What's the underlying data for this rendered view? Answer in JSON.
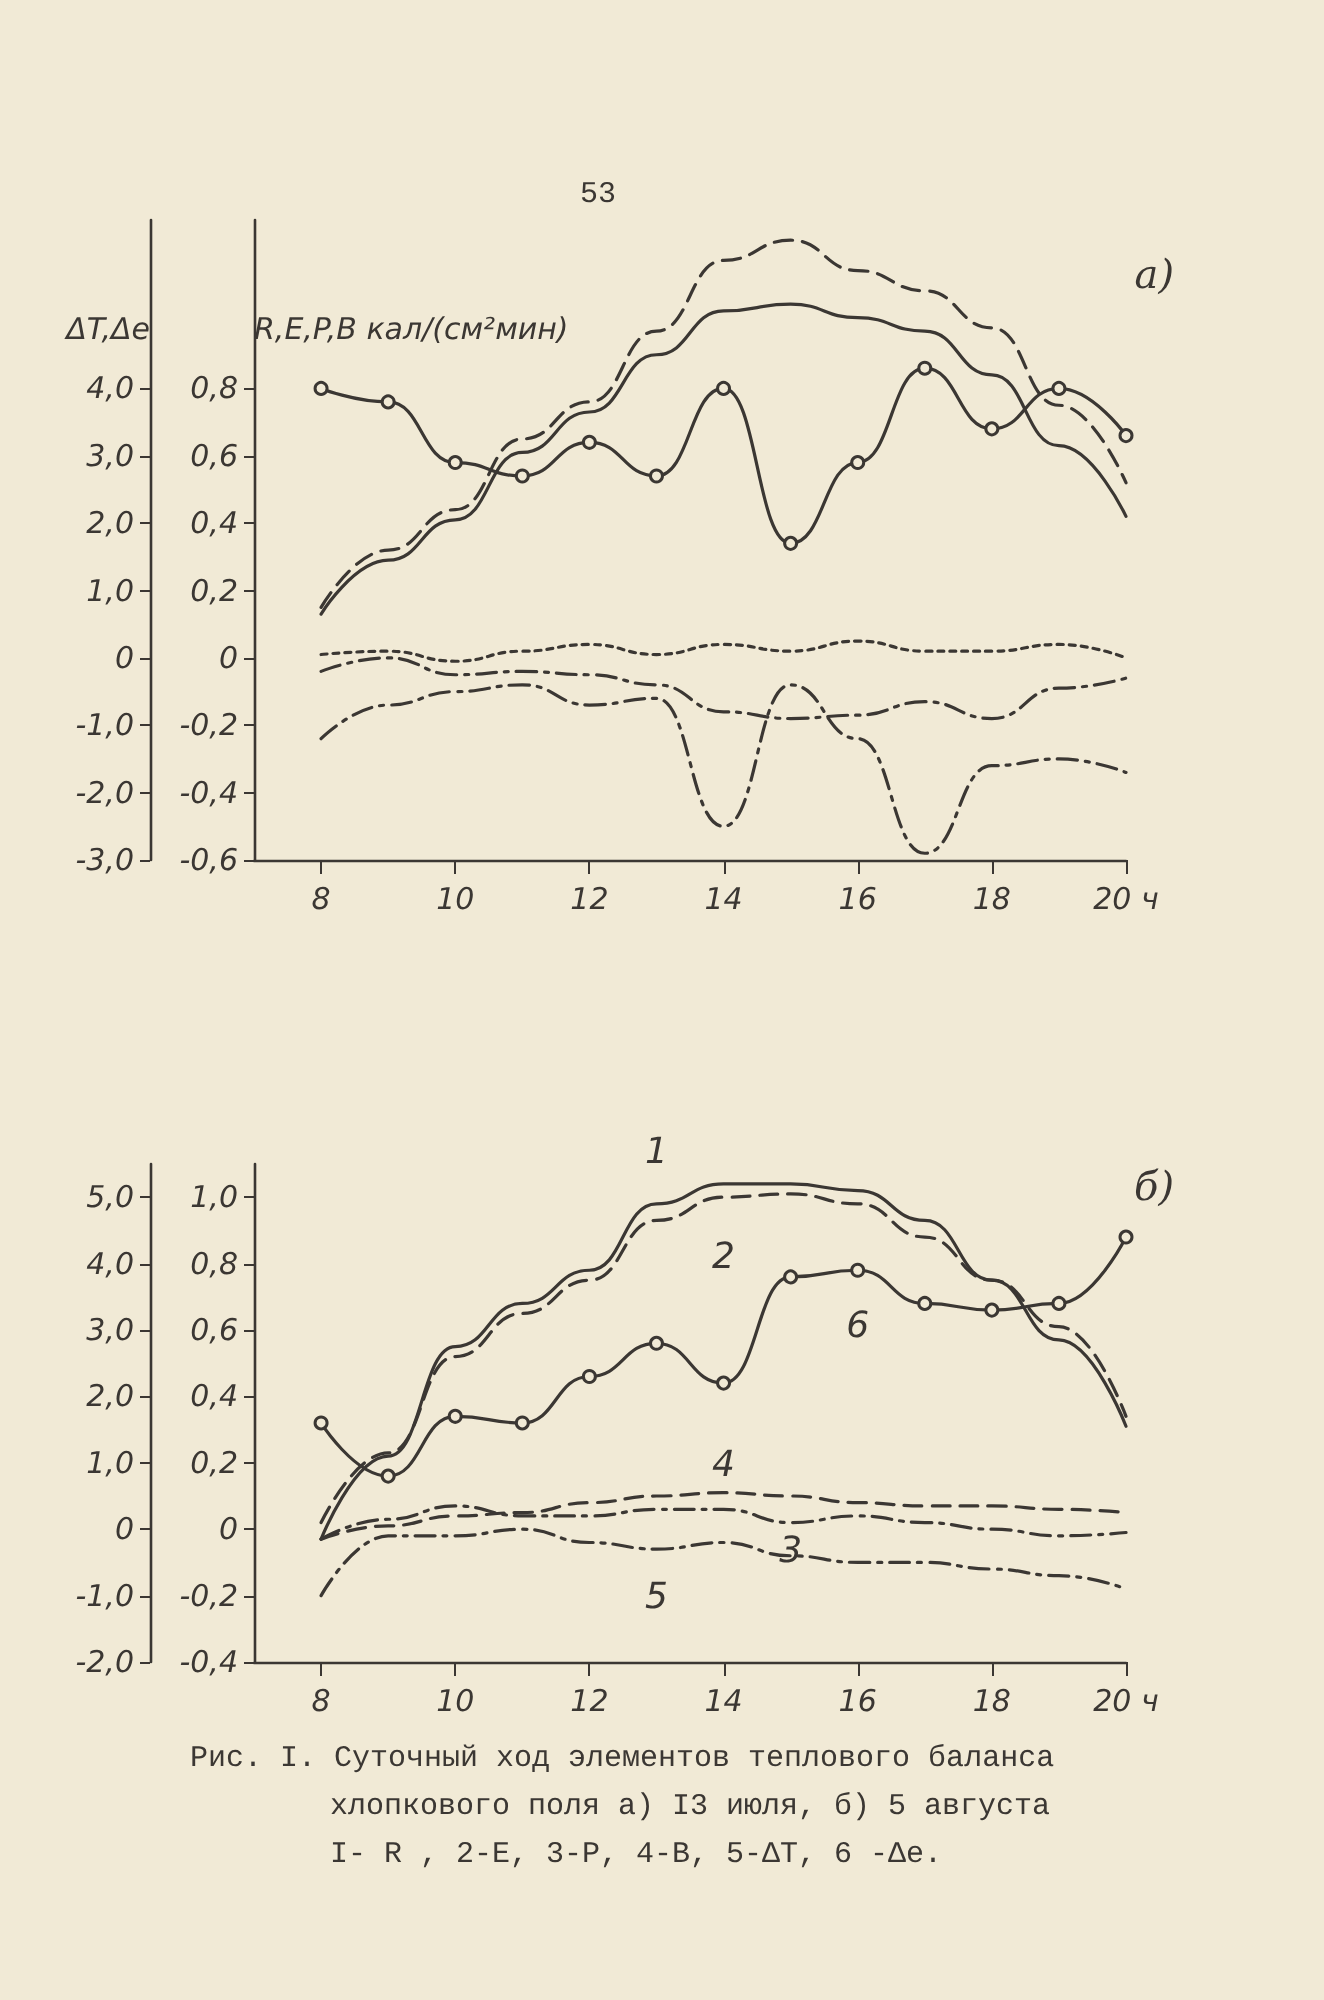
{
  "chart_data": [
    {
      "type": "line",
      "title": "а)",
      "ylabel": "R,E,P,B кал/(см²мин)",
      "y2label": "ΔT,Δe",
      "annotations": [
        "53"
      ],
      "x": [
        8,
        9,
        10,
        11,
        12,
        13,
        14,
        15,
        16,
        17,
        18,
        19,
        20
      ],
      "xlim": [
        7,
        20
      ],
      "xticks": [
        8,
        10,
        12,
        14,
        16,
        18,
        {
          "value": 20,
          "label": "20 ч"
        }
      ],
      "ylim": [
        -0.6,
        1.3
      ],
      "yticks": [
        {
          "value": -0.6,
          "label": "-0,6"
        },
        {
          "value": -0.4,
          "label": "-0,4"
        },
        {
          "value": -0.2,
          "label": "-0,2"
        },
        0,
        {
          "value": 0.2,
          "label": "0,2"
        },
        {
          "value": 0.4,
          "label": "0,4"
        },
        {
          "value": 0.6,
          "label": "0,6"
        },
        {
          "value": 0.8,
          "label": "0,8"
        }
      ],
      "y2lim": [
        -3,
        6.5
      ],
      "y2ticks": [
        {
          "value": -3,
          "label": "-3,0"
        },
        {
          "value": -2,
          "label": "-2,0"
        },
        {
          "value": -1,
          "label": "-1,0"
        },
        0,
        {
          "value": 1,
          "label": "1,0"
        },
        {
          "value": 2,
          "label": "2,0"
        },
        {
          "value": 3,
          "label": "3,0"
        },
        {
          "value": 4,
          "label": "4,0"
        }
      ],
      "grid": false,
      "legend": false,
      "marker": "none",
      "series": [
        {
          "color": "#3b3733",
          "line_style": "solid",
          "values": [
            0.13,
            0.29,
            0.41,
            0.61,
            0.73,
            0.9,
            1.03,
            1.05,
            1.01,
            0.97,
            0.84,
            0.63,
            0.42
          ]
        },
        {
          "color": "#3b3733",
          "line_style": "dashed",
          "values": [
            0.15,
            0.32,
            0.44,
            0.65,
            0.76,
            0.97,
            1.18,
            1.24,
            1.15,
            1.09,
            0.98,
            0.75,
            0.52
          ]
        },
        {
          "color": "#3b3733",
          "line_style": "dashdot",
          "values": [
            -0.04,
            0.0,
            -0.05,
            -0.04,
            -0.05,
            -0.08,
            -0.16,
            -0.18,
            -0.17,
            -0.13,
            -0.18,
            -0.09,
            -0.06
          ]
        },
        {
          "color": "#3b3733",
          "line_style": "dotted",
          "values": [
            0.01,
            0.02,
            -0.01,
            0.02,
            0.04,
            0.01,
            0.04,
            0.02,
            0.05,
            0.02,
            0.02,
            0.04,
            0.0
          ]
        },
        {
          "color": "#3b3733",
          "line_style": "dashdot",
          "axis": "y2",
          "values": [
            -1.2,
            -0.7,
            -0.5,
            -0.4,
            -0.7,
            -0.6,
            -2.5,
            -0.4,
            -1.2,
            -2.9,
            -1.6,
            -1.5,
            -1.7
          ]
        },
        {
          "color": "#3b3733",
          "line_style": "solid",
          "axis": "y2",
          "marker": "circle",
          "values": [
            4.0,
            3.8,
            2.9,
            2.7,
            3.2,
            2.7,
            4.0,
            1.7,
            2.9,
            4.3,
            3.4,
            4.0,
            3.3
          ]
        }
      ]
    },
    {
      "type": "line",
      "title": "б)",
      "annotations": [
        "Рис. I. Суточный ход элементов теплового баланса\nхлопкового поля а) I3 июля, б) 5 августа\nI- R  , 2-E, 3-P, 4-B, 5-ΔT, 6 -Δe."
      ],
      "x": [
        8,
        9,
        10,
        11,
        12,
        13,
        14,
        15,
        16,
        17,
        18,
        19,
        20
      ],
      "xlim": [
        7,
        20
      ],
      "xticks": [
        8,
        10,
        12,
        14,
        16,
        18,
        {
          "value": 20,
          "label": "20 ч"
        }
      ],
      "ylim": [
        -0.4,
        1.1
      ],
      "yticks": [
        {
          "value": -0.4,
          "label": "-0,4"
        },
        {
          "value": -0.2,
          "label": "-0,2"
        },
        0,
        {
          "value": 0.2,
          "label": "0,2"
        },
        {
          "value": 0.4,
          "label": "0,4"
        },
        {
          "value": 0.6,
          "label": "0,6"
        },
        {
          "value": 0.8,
          "label": "0,8"
        },
        {
          "value": 1.0,
          "label": "1,0"
        }
      ],
      "y2lim": [
        -2,
        5.5
      ],
      "y2ticks": [
        {
          "value": -2,
          "label": "-2,0"
        },
        {
          "value": -1,
          "label": "-1,0"
        },
        0,
        {
          "value": 1,
          "label": "1,0"
        },
        {
          "value": 2,
          "label": "2,0"
        },
        {
          "value": 3,
          "label": "3,0"
        },
        {
          "value": 4,
          "label": "4,0"
        },
        {
          "value": 5,
          "label": "5,0"
        }
      ],
      "grid": false,
      "legend": false,
      "marker": "none",
      "series": [
        {
          "name": "1",
          "color": "#3b3733",
          "line_style": "solid",
          "values": [
            -0.03,
            0.22,
            0.55,
            0.68,
            0.78,
            0.98,
            1.04,
            1.04,
            1.02,
            0.93,
            0.75,
            0.57,
            0.31
          ]
        },
        {
          "name": "2",
          "color": "#3b3733",
          "line_style": "dashed",
          "values": [
            0.02,
            0.23,
            0.52,
            0.65,
            0.75,
            0.93,
            1.0,
            1.01,
            0.98,
            0.88,
            0.75,
            0.61,
            0.34
          ]
        },
        {
          "name": "3",
          "color": "#3b3733",
          "line_style": "dashdot",
          "values": [
            -0.03,
            0.03,
            0.07,
            0.04,
            0.04,
            0.06,
            0.06,
            0.02,
            0.04,
            0.02,
            0.0,
            -0.02,
            -0.01
          ]
        },
        {
          "name": "4",
          "color": "#3b3733",
          "line_style": "dashed",
          "values": [
            -0.03,
            0.01,
            0.04,
            0.05,
            0.08,
            0.1,
            0.11,
            0.1,
            0.08,
            0.07,
            0.07,
            0.06,
            0.05
          ]
        },
        {
          "name": "5",
          "color": "#3b3733",
          "line_style": "dashdot",
          "axis": "y2",
          "values": [
            -1.0,
            -0.1,
            -0.1,
            0.0,
            -0.2,
            -0.3,
            -0.2,
            -0.4,
            -0.5,
            -0.5,
            -0.6,
            -0.7,
            -0.9
          ]
        },
        {
          "name": "6",
          "color": "#3b3733",
          "line_style": "solid",
          "axis": "y2",
          "marker": "circle",
          "values": [
            1.6,
            0.8,
            1.7,
            1.6,
            2.3,
            2.8,
            2.2,
            3.8,
            3.9,
            3.4,
            3.3,
            3.4,
            4.4
          ]
        }
      ]
    }
  ]
}
